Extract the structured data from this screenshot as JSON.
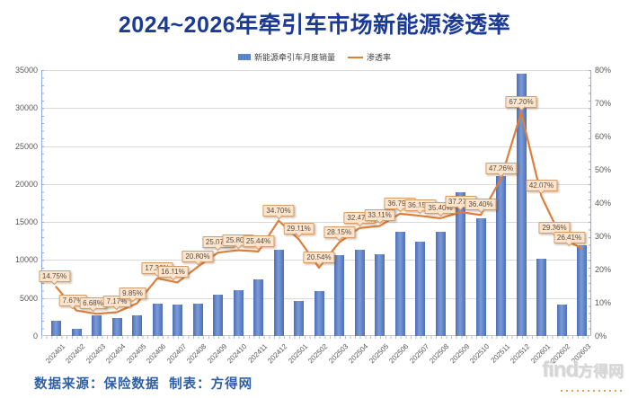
{
  "header": {
    "title": "2024~2026年牵引车市场新能源渗透率",
    "title_color": "#1B3A94"
  },
  "legend": {
    "items": [
      {
        "label": "新能源牵引车月度销量",
        "swatch": "bar",
        "color": "#5B83C9"
      },
      {
        "label": "渗透率",
        "swatch": "line",
        "color": "#DE7E3B"
      }
    ]
  },
  "chart_data": {
    "type": "bar",
    "title": "2024~2026年牵引车市场新能源渗透率",
    "grid": true,
    "legend_position": "top",
    "categories": [
      "202401",
      "202402",
      "202403",
      "202404",
      "202405",
      "202406",
      "202407",
      "202408",
      "202409",
      "202410",
      "202411",
      "202412",
      "202501",
      "202502",
      "202503",
      "202504",
      "202505",
      "202506",
      "202507",
      "202508",
      "202509",
      "202510",
      "202511",
      "202512",
      "202601",
      "202602",
      "202603"
    ],
    "series": [
      {
        "name": "新能源牵引车月度销量",
        "type": "bar",
        "axis": "left",
        "color": "#5B83C9",
        "values": [
          2000,
          1000,
          2700,
          2350,
          2700,
          4300,
          4200,
          4300,
          5500,
          6000,
          7500,
          11300,
          4600,
          5900,
          10700,
          11300,
          10800,
          13700,
          12400,
          13700,
          18900,
          15500,
          21000,
          34500,
          10200,
          4200,
          12000
        ]
      },
      {
        "name": "渗透率",
        "type": "line",
        "axis": "right",
        "color": "#DE7E3B",
        "values": [
          14.75,
          7.67,
          6.68,
          7.17,
          9.85,
          17.36,
          16.11,
          20.8,
          25.07,
          25.8,
          25.44,
          34.7,
          29.11,
          20.54,
          28.15,
          32.47,
          33.11,
          36.79,
          36.15,
          35.4,
          37.27,
          36.4,
          47.26,
          67.2,
          42.07,
          29.36,
          26.41
        ],
        "point_labels": [
          "14.75%",
          "7.67%",
          "6.68%",
          "7.17%",
          "9.85%",
          "17.36%",
          "16.11%",
          "20.80%",
          "25.07%",
          "25.80%",
          "25.44%",
          "34.70%",
          "29.11%",
          "20.54%",
          "28.15%",
          "32.47%",
          "33.11%",
          "36.79%",
          "36.15%",
          "35.40%",
          "37.27%",
          "36.40%",
          "47.26%",
          "67.20%",
          "42.07%",
          "29.36%",
          "26.41%"
        ]
      }
    ],
    "left_axis": {
      "min": 0,
      "max": 35000,
      "step": 5000,
      "tick_labels": [
        "0",
        "5000",
        "10000",
        "15000",
        "20000",
        "25000",
        "30000",
        "35000"
      ]
    },
    "right_axis": {
      "min": 0,
      "max": 80,
      "step": 10,
      "tick_labels": [
        "0%",
        "10%",
        "20%",
        "30%",
        "40%",
        "50%",
        "60%",
        "70%",
        "80%"
      ]
    }
  },
  "callout_style": {
    "bg": "#FBE5CF",
    "border": "#D89C68",
    "text": "#5A4A3A"
  },
  "footer": {
    "source": "数据来源：保险数据",
    "maker": "制表：方得网",
    "color": "#2E5FA8",
    "logo_find": "find",
    "logo_cn": "方得网"
  }
}
